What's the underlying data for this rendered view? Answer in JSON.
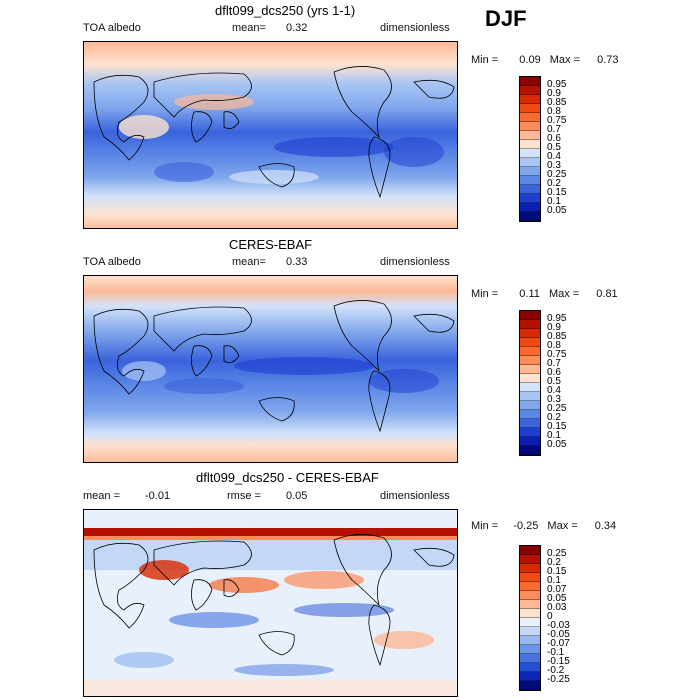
{
  "season": "DJF",
  "panels": [
    {
      "title": "dflt099_dcs250 (yrs 1-1)",
      "left_label": "TOA albedo",
      "center_label": "mean=",
      "center_value": "0.32",
      "right_label": "dimensionless",
      "min_label": "Min =",
      "min_value": "0.09",
      "max_label": "Max =",
      "max_value": "0.73",
      "colorbar": [
        "0.95",
        "0.9",
        "0.85",
        "0.8",
        "0.75",
        "0.7",
        "0.6",
        "0.5",
        "0.4",
        "0.3",
        "0.25",
        "0.2",
        "0.15",
        "0.1",
        "0.05"
      ],
      "colorbar_colors": [
        "#8b0000",
        "#b31200",
        "#d62a00",
        "#ef4a12",
        "#f86a2e",
        "#fc8c5a",
        "#fdb896",
        "#fde2d0",
        "#d2e3fa",
        "#a9c6f3",
        "#80a6ec",
        "#5a86e6",
        "#3a63dc",
        "#1d3ecf",
        "#0a1fb0",
        "#000a7a"
      ]
    },
    {
      "title": "CERES-EBAF",
      "left_label": "TOA albedo",
      "center_label": "mean=",
      "center_value": "0.33",
      "right_label": "dimensionless",
      "min_label": "Min =",
      "min_value": "0.11",
      "max_label": "Max =",
      "max_value": "0.81",
      "colorbar": [
        "0.95",
        "0.9",
        "0.85",
        "0.8",
        "0.75",
        "0.7",
        "0.6",
        "0.5",
        "0.4",
        "0.3",
        "0.25",
        "0.2",
        "0.15",
        "0.1",
        "0.05"
      ],
      "colorbar_colors": [
        "#8b0000",
        "#b31200",
        "#d62a00",
        "#ef4a12",
        "#f86a2e",
        "#fc8c5a",
        "#fdb896",
        "#fde2d0",
        "#d2e3fa",
        "#a9c6f3",
        "#80a6ec",
        "#5a86e6",
        "#3a63dc",
        "#1d3ecf",
        "#0a1fb0",
        "#000a7a"
      ]
    },
    {
      "title": "dflt099_dcs250 - CERES-EBAF",
      "left_label": "mean =",
      "left_value": "-0.01",
      "center_label": "rmse =",
      "center_value": "0.05",
      "right_label": "dimensionless",
      "min_label": "Min =",
      "min_value": "-0.25",
      "max_label": "Max =",
      "max_value": "0.34",
      "colorbar": [
        "0.25",
        "0.2",
        "0.15",
        "0.1",
        "0.07",
        "0.05",
        "0.03",
        "0",
        "-0.03",
        "-0.05",
        "-0.07",
        "-0.1",
        "-0.15",
        "-0.2",
        "-0.25"
      ],
      "colorbar_colors": [
        "#8b0000",
        "#b31200",
        "#d62a00",
        "#ef4a12",
        "#f86a2e",
        "#fc8c5a",
        "#fdb896",
        "#fde2d0",
        "#e8f0fb",
        "#c3d7f6",
        "#98b8ef",
        "#6c95e8",
        "#4673e0",
        "#2450d6",
        "#0c28b6",
        "#000a7a"
      ]
    }
  ]
}
